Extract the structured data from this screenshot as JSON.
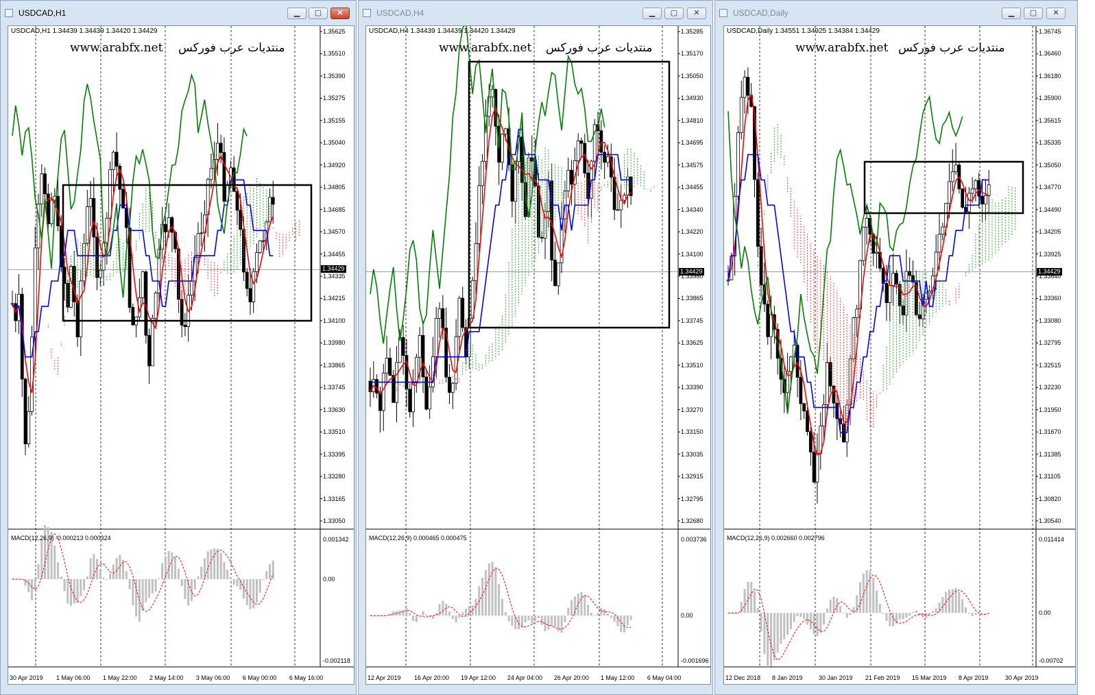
{
  "windows": [
    {
      "title": "USDCAD,H1",
      "active": true,
      "info": "USDCAD,H1  1.34439 1.34439 1.34420 1.34429",
      "watermark_url": "www.arabfx.net",
      "watermark_ar": "منتديات عرب فوركس",
      "price_labels": [
        "1.35625",
        "1.35510",
        "1.35390",
        "1.35275",
        "1.35155",
        "1.35040",
        "1.34920",
        "1.34805",
        "1.34685",
        "1.34570",
        "1.34455",
        "1.34335",
        "1.34215",
        "1.34100",
        "1.33980",
        "1.33865",
        "1.33745",
        "1.33630",
        "1.33510",
        "1.33395",
        "1.33280",
        "1.33165",
        "1.33050"
      ],
      "current_price": "1.34429",
      "macd_label": "MACD(12,26,9) -0.000213 0.000324",
      "macd_scale": [
        "0.001342",
        "0.00",
        "-0.002118"
      ],
      "time_labels": [
        "30 Apr 2019",
        "1 May 06:00",
        "1 May 22:00",
        "2 May 14:00",
        "3 May 06:00",
        "6 May 00:00",
        "6 May 16:00"
      ],
      "buttons": [
        "minimize",
        "maximize",
        "close"
      ]
    },
    {
      "title": "USDCAD,H4",
      "active": false,
      "info": "USDCAD,H4  1.34439 1.34439 1.34420 1.34429",
      "watermark_url": "www.arabfx.net",
      "watermark_ar": "منتديات عرب فوركس",
      "price_labels": [
        "1.35285",
        "1.35170",
        "1.35050",
        "1.34930",
        "1.34810",
        "1.34695",
        "1.34575",
        "1.34455",
        "1.34340",
        "1.34220",
        "1.34100",
        "1.33980",
        "1.33865",
        "1.33745",
        "1.33625",
        "1.33510",
        "1.33390",
        "1.33270",
        "1.33150",
        "1.33035",
        "1.32915",
        "1.32795",
        "1.32680"
      ],
      "current_price": "1.34429",
      "macd_label": "MACD(12,26,9) 0.000465 0.000475",
      "macd_scale": [
        "0.003736",
        "0.00",
        "-0.001696"
      ],
      "time_labels": [
        "12 Apr 2019",
        "16 Apr 20:00",
        "19 Apr 12:00",
        "24 Apr 04:00",
        "26 Apr 20:00",
        "1 May 12:00",
        "6 May 04:00"
      ],
      "buttons": [
        "minimize",
        "maximize",
        "close"
      ]
    },
    {
      "title": "USDCAD,Daily",
      "active": false,
      "info": "USDCAD,Daily  1.34551 1.34925 1.34384 1.34429",
      "watermark_url": "www.arabfx.net",
      "watermark_ar": "منتديات عرب فوركس",
      "price_labels": [
        "1.36745",
        "1.36460",
        "1.36180",
        "1.35900",
        "1.35615",
        "1.35335",
        "1.35050",
        "1.34770",
        "1.34490",
        "1.34205",
        "1.33925",
        "1.33640",
        "1.33360",
        "1.33080",
        "1.32795",
        "1.32515",
        "1.32230",
        "1.31950",
        "1.31670",
        "1.31385",
        "1.31105",
        "1.30820",
        "1.30540"
      ],
      "current_price": "1.34429",
      "macd_label": "MACD(12,26,9) 0.002660 0.002796",
      "macd_scale": [
        "0.011414",
        "0.00",
        "-0.00702"
      ],
      "time_labels": [
        "12 Dec 2018",
        "8 Jan 2019",
        "30 Jan 2019",
        "21 Feb 2019",
        "15 Mar 2019",
        "8 Apr 2019",
        "30 Apr 2019"
      ],
      "buttons": [
        "minimize",
        "maximize",
        "close"
      ]
    }
  ],
  "colors": {
    "candle": "#000000",
    "kijun": "#0000ff",
    "tenkan": "#ff0000",
    "chikou": "#008000",
    "cloud_bull": "#2ca02c",
    "cloud_bear": "#ff3333",
    "macd_bar": "#c0c0c0",
    "macd_signal": "#ff0000",
    "grid": "#000000"
  }
}
